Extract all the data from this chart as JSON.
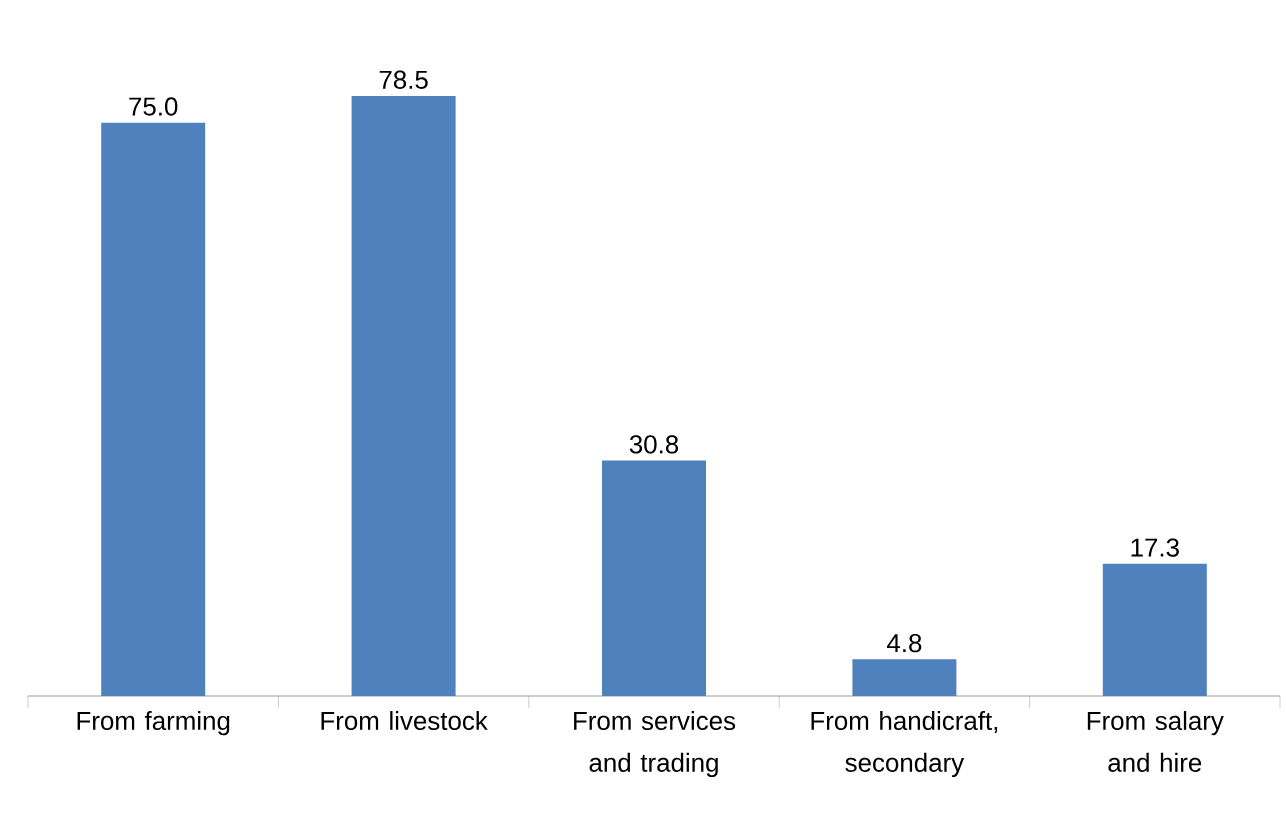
{
  "chart_data": {
    "type": "bar",
    "categories": [
      "From farming",
      "From livestock",
      "From services and trading",
      "From handicraft, secondary",
      "From salary and hire"
    ],
    "values": [
      75.0,
      78.5,
      30.8,
      4.8,
      17.3
    ],
    "value_labels": [
      "75.0",
      "78.5",
      "30.8",
      "4.8",
      "17.3"
    ],
    "color": "#4f81bd"
  }
}
